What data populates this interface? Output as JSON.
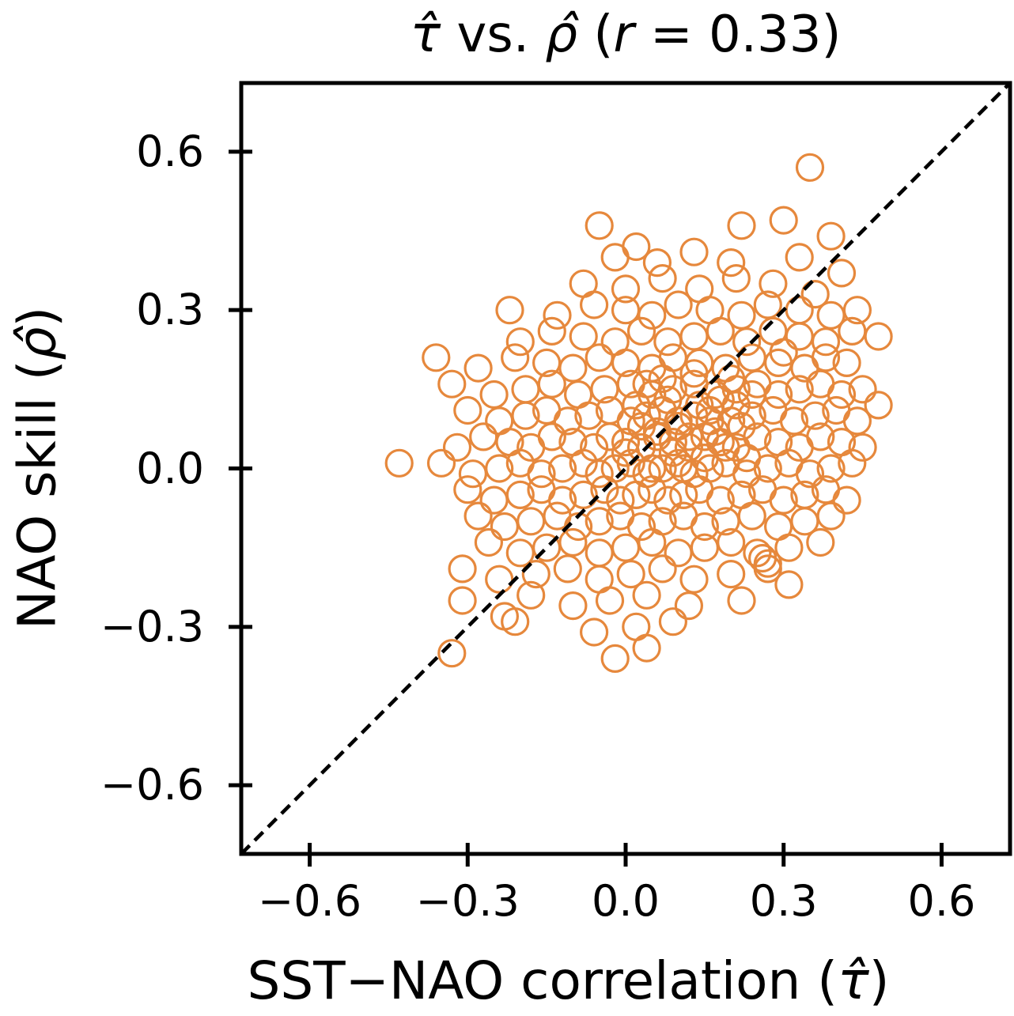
{
  "figure": {
    "title": {
      "tau": "τ̂",
      "mid": " vs. ",
      "rho": "ρ̂",
      "open": " (",
      "r": "r",
      "suffix": " = 0.33)"
    },
    "x_axis": {
      "label_prefix": "SST−NAO correlation (",
      "label_symbol": "τ̂",
      "label_suffix": ")",
      "tick_labels": [
        "−0.6",
        "−0.3",
        "0.0",
        "0.3",
        "0.6"
      ]
    },
    "y_axis": {
      "label_prefix": "NAO skill (",
      "label_symbol": "ρ̂",
      "label_suffix": ")",
      "tick_labels": [
        "−0.6",
        "−0.3",
        "0.0",
        "0.3",
        "0.6"
      ]
    },
    "colors": {
      "marker": "#E6883C",
      "reference_line": "#000000",
      "spine": "#000000",
      "background": "#ffffff"
    }
  },
  "chart_data": {
    "type": "scatter",
    "title": "τ̂ vs. ρ̂ (r = 0.33)",
    "xlabel": "SST−NAO correlation (τ̂)",
    "ylabel": "NAO skill (ρ̂)",
    "correlation_r": 0.33,
    "xlim": [
      -0.73,
      0.73
    ],
    "ylim": [
      -0.73,
      0.73
    ],
    "x_ticks": [
      -0.6,
      -0.3,
      0.0,
      0.3,
      0.6
    ],
    "y_ticks": [
      -0.6,
      -0.3,
      0.0,
      0.3,
      0.6
    ],
    "grid": false,
    "legend": "none",
    "marker": {
      "shape": "open-circle",
      "color": "#E6883C",
      "radius_px": 16.5,
      "stroke_px": 3.2
    },
    "reference_line": {
      "kind": "identity y=x",
      "style": "dashed",
      "color": "#000000",
      "from": [
        -0.73,
        -0.73
      ],
      "to": [
        0.73,
        0.73
      ]
    },
    "points": [
      [
        -0.02,
        0.4
      ],
      [
        0.02,
        0.42
      ],
      [
        0.06,
        0.39
      ],
      [
        0.13,
        0.41
      ],
      [
        0.2,
        0.39
      ],
      [
        0.33,
        0.4
      ],
      [
        -0.08,
        0.35
      ],
      [
        0.0,
        0.34
      ],
      [
        0.07,
        0.36
      ],
      [
        0.14,
        0.34
      ],
      [
        0.21,
        0.36
      ],
      [
        0.28,
        0.35
      ],
      [
        0.36,
        0.33
      ],
      [
        0.41,
        0.37
      ],
      [
        -0.22,
        0.3
      ],
      [
        -0.13,
        0.29
      ],
      [
        -0.06,
        0.31
      ],
      [
        0.0,
        0.3
      ],
      [
        0.05,
        0.29
      ],
      [
        0.1,
        0.31
      ],
      [
        0.16,
        0.3
      ],
      [
        0.22,
        0.29
      ],
      [
        0.27,
        0.31
      ],
      [
        0.33,
        0.3
      ],
      [
        0.39,
        0.29
      ],
      [
        0.44,
        0.3
      ],
      [
        -0.2,
        0.24
      ],
      [
        -0.14,
        0.26
      ],
      [
        -0.08,
        0.25
      ],
      [
        -0.02,
        0.24
      ],
      [
        0.03,
        0.26
      ],
      [
        0.08,
        0.24
      ],
      [
        0.13,
        0.25
      ],
      [
        0.18,
        0.26
      ],
      [
        0.23,
        0.24
      ],
      [
        0.28,
        0.26
      ],
      [
        0.33,
        0.25
      ],
      [
        0.38,
        0.24
      ],
      [
        0.43,
        0.26
      ],
      [
        0.48,
        0.25
      ],
      [
        -0.28,
        0.19
      ],
      [
        -0.21,
        0.21
      ],
      [
        -0.15,
        0.2
      ],
      [
        -0.1,
        0.19
      ],
      [
        -0.05,
        0.21
      ],
      [
        0.0,
        0.2
      ],
      [
        0.05,
        0.19
      ],
      [
        0.09,
        0.21
      ],
      [
        0.14,
        0.2
      ],
      [
        0.19,
        0.19
      ],
      [
        0.24,
        0.21
      ],
      [
        0.29,
        0.2
      ],
      [
        0.34,
        0.19
      ],
      [
        0.38,
        0.21
      ],
      [
        0.42,
        0.2
      ],
      [
        0.3,
        0.22
      ],
      [
        -0.33,
        0.16
      ],
      [
        -0.25,
        0.14
      ],
      [
        -0.19,
        0.15
      ],
      [
        -0.14,
        0.16
      ],
      [
        -0.09,
        0.14
      ],
      [
        -0.04,
        0.15
      ],
      [
        0.01,
        0.16
      ],
      [
        0.05,
        0.14
      ],
      [
        0.09,
        0.15
      ],
      [
        0.13,
        0.16
      ],
      [
        0.17,
        0.14
      ],
      [
        0.21,
        0.15
      ],
      [
        0.25,
        0.16
      ],
      [
        0.29,
        0.14
      ],
      [
        0.33,
        0.15
      ],
      [
        0.37,
        0.16
      ],
      [
        0.41,
        0.14
      ],
      [
        0.45,
        0.15
      ],
      [
        -0.3,
        0.11
      ],
      [
        -0.24,
        0.09
      ],
      [
        -0.19,
        0.1
      ],
      [
        -0.15,
        0.11
      ],
      [
        -0.11,
        0.09
      ],
      [
        -0.07,
        0.1
      ],
      [
        -0.03,
        0.11
      ],
      [
        0.01,
        0.09
      ],
      [
        0.04,
        0.1
      ],
      [
        0.07,
        0.11
      ],
      [
        0.1,
        0.09
      ],
      [
        0.13,
        0.1
      ],
      [
        0.16,
        0.11
      ],
      [
        0.2,
        0.09
      ],
      [
        0.24,
        0.1
      ],
      [
        0.28,
        0.11
      ],
      [
        0.32,
        0.09
      ],
      [
        0.36,
        0.1
      ],
      [
        0.4,
        0.11
      ],
      [
        0.44,
        0.09
      ],
      [
        -0.32,
        0.04
      ],
      [
        -0.27,
        0.06
      ],
      [
        -0.22,
        0.05
      ],
      [
        -0.18,
        0.04
      ],
      [
        -0.14,
        0.06
      ],
      [
        -0.1,
        0.05
      ],
      [
        -0.06,
        0.04
      ],
      [
        -0.03,
        0.06
      ],
      [
        0.0,
        0.05
      ],
      [
        0.03,
        0.04
      ],
      [
        0.06,
        0.06
      ],
      [
        0.09,
        0.05
      ],
      [
        0.12,
        0.04
      ],
      [
        0.15,
        0.06
      ],
      [
        0.18,
        0.05
      ],
      [
        0.21,
        0.04
      ],
      [
        0.25,
        0.06
      ],
      [
        0.29,
        0.05
      ],
      [
        0.33,
        0.04
      ],
      [
        0.37,
        0.06
      ],
      [
        0.41,
        0.05
      ],
      [
        0.45,
        0.04
      ],
      [
        -0.35,
        0.01
      ],
      [
        -0.29,
        -0.01
      ],
      [
        -0.24,
        0.0
      ],
      [
        -0.2,
        0.01
      ],
      [
        -0.16,
        -0.01
      ],
      [
        -0.12,
        0.0
      ],
      [
        -0.08,
        0.01
      ],
      [
        -0.05,
        -0.01
      ],
      [
        -0.02,
        0.0
      ],
      [
        0.01,
        0.01
      ],
      [
        0.04,
        -0.01
      ],
      [
        0.07,
        0.0
      ],
      [
        0.1,
        0.01
      ],
      [
        0.13,
        -0.01
      ],
      [
        0.16,
        0.0
      ],
      [
        0.19,
        0.01
      ],
      [
        0.23,
        -0.01
      ],
      [
        0.27,
        0.0
      ],
      [
        0.31,
        0.01
      ],
      [
        0.35,
        -0.01
      ],
      [
        0.39,
        0.0
      ],
      [
        0.43,
        0.01
      ],
      [
        -0.3,
        -0.04
      ],
      [
        -0.25,
        -0.06
      ],
      [
        -0.2,
        -0.05
      ],
      [
        -0.16,
        -0.04
      ],
      [
        -0.12,
        -0.06
      ],
      [
        -0.08,
        -0.05
      ],
      [
        -0.04,
        -0.04
      ],
      [
        -0.01,
        -0.06
      ],
      [
        0.02,
        -0.05
      ],
      [
        0.05,
        -0.04
      ],
      [
        0.08,
        -0.06
      ],
      [
        0.11,
        -0.05
      ],
      [
        0.14,
        -0.04
      ],
      [
        0.18,
        -0.06
      ],
      [
        0.22,
        -0.05
      ],
      [
        0.26,
        -0.04
      ],
      [
        0.3,
        -0.06
      ],
      [
        0.34,
        -0.05
      ],
      [
        0.38,
        -0.04
      ],
      [
        0.42,
        -0.06
      ],
      [
        -0.28,
        -0.09
      ],
      [
        -0.23,
        -0.11
      ],
      [
        -0.18,
        -0.1
      ],
      [
        -0.13,
        -0.09
      ],
      [
        -0.09,
        -0.11
      ],
      [
        -0.05,
        -0.1
      ],
      [
        -0.01,
        -0.09
      ],
      [
        0.03,
        -0.11
      ],
      [
        0.07,
        -0.1
      ],
      [
        0.11,
        -0.09
      ],
      [
        0.15,
        -0.11
      ],
      [
        0.19,
        -0.1
      ],
      [
        0.24,
        -0.09
      ],
      [
        0.29,
        -0.11
      ],
      [
        0.34,
        -0.1
      ],
      [
        0.39,
        -0.09
      ],
      [
        -0.26,
        -0.14
      ],
      [
        -0.2,
        -0.16
      ],
      [
        -0.15,
        -0.15
      ],
      [
        -0.1,
        -0.14
      ],
      [
        -0.05,
        -0.16
      ],
      [
        0.0,
        -0.15
      ],
      [
        0.05,
        -0.14
      ],
      [
        0.1,
        -0.16
      ],
      [
        0.15,
        -0.15
      ],
      [
        0.2,
        -0.14
      ],
      [
        0.25,
        -0.16
      ],
      [
        0.31,
        -0.15
      ],
      [
        0.37,
        -0.14
      ],
      [
        -0.31,
        -0.19
      ],
      [
        -0.24,
        -0.21
      ],
      [
        -0.17,
        -0.2
      ],
      [
        -0.11,
        -0.19
      ],
      [
        -0.05,
        -0.21
      ],
      [
        0.01,
        -0.2
      ],
      [
        0.07,
        -0.19
      ],
      [
        0.13,
        -0.21
      ],
      [
        0.2,
        -0.2
      ],
      [
        0.27,
        -0.19
      ],
      [
        -0.18,
        -0.24
      ],
      [
        -0.1,
        -0.26
      ],
      [
        -0.03,
        -0.25
      ],
      [
        0.04,
        -0.24
      ],
      [
        0.12,
        -0.26
      ],
      [
        0.22,
        -0.25
      ],
      [
        -0.21,
        -0.29
      ],
      [
        -0.06,
        -0.31
      ],
      [
        0.02,
        -0.3
      ],
      [
        0.09,
        -0.29
      ],
      [
        0.06,
        0.07
      ],
      [
        0.09,
        0.03
      ],
      [
        0.03,
        0.08
      ],
      [
        0.12,
        0.06
      ],
      [
        0.0,
        0.03
      ],
      [
        0.15,
        0.02
      ],
      [
        0.05,
        0.0
      ],
      [
        0.1,
        0.08
      ],
      [
        0.17,
        0.07
      ],
      [
        0.02,
        0.12
      ],
      [
        0.08,
        0.13
      ],
      [
        0.14,
        0.12
      ],
      [
        0.19,
        0.04
      ],
      [
        0.11,
        0.0
      ],
      [
        0.16,
        0.09
      ],
      [
        0.04,
        0.16
      ],
      [
        0.13,
        0.18
      ],
      [
        0.07,
        0.17
      ],
      [
        0.18,
        0.13
      ],
      [
        0.22,
        0.08
      ],
      [
        0.21,
        0.12
      ],
      [
        0.2,
        0.17
      ],
      [
        0.23,
        0.02
      ],
      [
        0.24,
        0.14
      ],
      [
        -0.43,
        0.01
      ],
      [
        -0.05,
        0.46
      ],
      [
        0.3,
        0.47
      ],
      [
        0.35,
        0.57
      ],
      [
        0.39,
        0.44
      ],
      [
        0.22,
        0.46
      ],
      [
        -0.36,
        0.21
      ],
      [
        -0.31,
        -0.25
      ],
      [
        -0.23,
        -0.28
      ],
      [
        -0.33,
        -0.35
      ],
      [
        -0.02,
        -0.36
      ],
      [
        0.04,
        -0.34
      ],
      [
        0.26,
        -0.17
      ],
      [
        0.27,
        -0.18
      ],
      [
        0.31,
        -0.22
      ],
      [
        0.48,
        0.12
      ]
    ]
  }
}
